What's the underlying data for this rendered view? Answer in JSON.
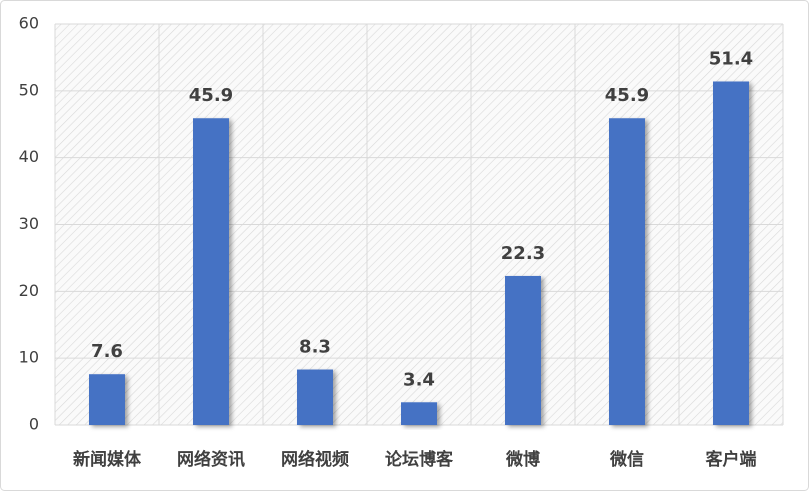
{
  "chart_data": {
    "type": "bar",
    "categories": [
      "新闻媒体",
      "网络资讯",
      "网络视频",
      "论坛博客",
      "微博",
      "微信",
      "客户端"
    ],
    "values": [
      7.6,
      45.9,
      8.3,
      3.4,
      22.3,
      45.9,
      51.4
    ],
    "color": "#4472c4",
    "ylim": [
      0,
      60
    ],
    "yticks": [
      0,
      10,
      20,
      30,
      40,
      50,
      60
    ],
    "grid": true,
    "data_labels": true
  }
}
